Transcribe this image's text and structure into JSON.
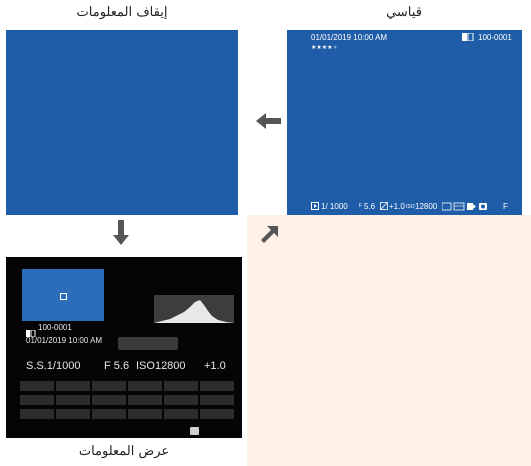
{
  "labels": {
    "standard": "قياسي",
    "info_off": "إيقاف المعلومات",
    "info_display": "عرض المعلومات"
  },
  "standard_screen": {
    "datetime": "01/01/2019 10:00 AM",
    "file_number": "100-0001",
    "rating_filled": 4,
    "rating_total": 5,
    "bottom_shutter": "1/ 1000",
    "bottom_aperture": "5.6",
    "bottom_ev": "+1.0",
    "bottom_iso": "12800",
    "bottom_f": "F"
  },
  "info_screen": {
    "file_number": "100-0001",
    "datetime": "01/01/2019 10:00 AM",
    "shutter": "S.S.1/1000",
    "aperture": "F 5.6",
    "iso": "ISO12800",
    "ev": "+1.0"
  },
  "colors": {
    "screen_blue": "#1f5da8",
    "thumb_blue": "#2b6dbb",
    "arrow_gray": "#555555",
    "peach": "#fdf1e6",
    "info_bg": "#050505"
  },
  "arrows": [
    "arrow-left",
    "arrow-down",
    "arrow-diagonal-up-right"
  ]
}
